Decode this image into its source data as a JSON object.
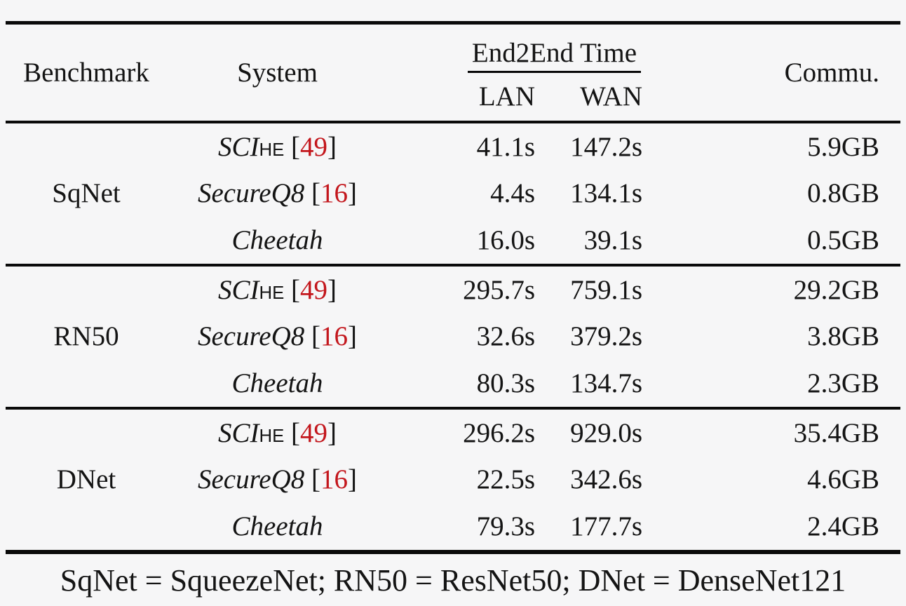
{
  "page": {
    "background": "#f6f6f7",
    "text_color": "#141414",
    "rule_color": "#0a0a0a",
    "citation_color": "#c3161c"
  },
  "table": {
    "header": {
      "benchmark": "Benchmark",
      "system": "System",
      "end2end_time": "End2End Time",
      "lan": "LAN",
      "wan": "WAN",
      "commu": "Commu."
    },
    "groups": [
      {
        "benchmark": "SqNet",
        "rows": [
          {
            "system": {
              "name": "SCI",
              "subscript": "HE",
              "citation": "49"
            },
            "lan": "41.1s",
            "wan": "147.2s",
            "commu": "5.9GB"
          },
          {
            "system": {
              "name": "SecureQ8",
              "citation": "16"
            },
            "lan": "4.4s",
            "wan": "134.1s",
            "commu": "0.8GB"
          },
          {
            "system": {
              "name": "Cheetah"
            },
            "lan": "16.0s",
            "wan": "39.1s",
            "commu": "0.5GB"
          }
        ]
      },
      {
        "benchmark": "RN50",
        "rows": [
          {
            "system": {
              "name": "SCI",
              "subscript": "HE",
              "citation": "49"
            },
            "lan": "295.7s",
            "wan": "759.1s",
            "commu": "29.2GB"
          },
          {
            "system": {
              "name": "SecureQ8",
              "citation": "16"
            },
            "lan": "32.6s",
            "wan": "379.2s",
            "commu": "3.8GB"
          },
          {
            "system": {
              "name": "Cheetah"
            },
            "lan": "80.3s",
            "wan": "134.7s",
            "commu": "2.3GB"
          }
        ]
      },
      {
        "benchmark": "DNet",
        "rows": [
          {
            "system": {
              "name": "SCI",
              "subscript": "HE",
              "citation": "49"
            },
            "lan": "296.2s",
            "wan": "929.0s",
            "commu": "35.4GB"
          },
          {
            "system": {
              "name": "SecureQ8",
              "citation": "16"
            },
            "lan": "22.5s",
            "wan": "342.6s",
            "commu": "4.6GB"
          },
          {
            "system": {
              "name": "Cheetah"
            },
            "lan": "79.3s",
            "wan": "177.7s",
            "commu": "2.4GB"
          }
        ]
      }
    ],
    "footnote": "SqNet = SqueezeNet; RN50 = ResNet50; DNet = DenseNet121"
  }
}
